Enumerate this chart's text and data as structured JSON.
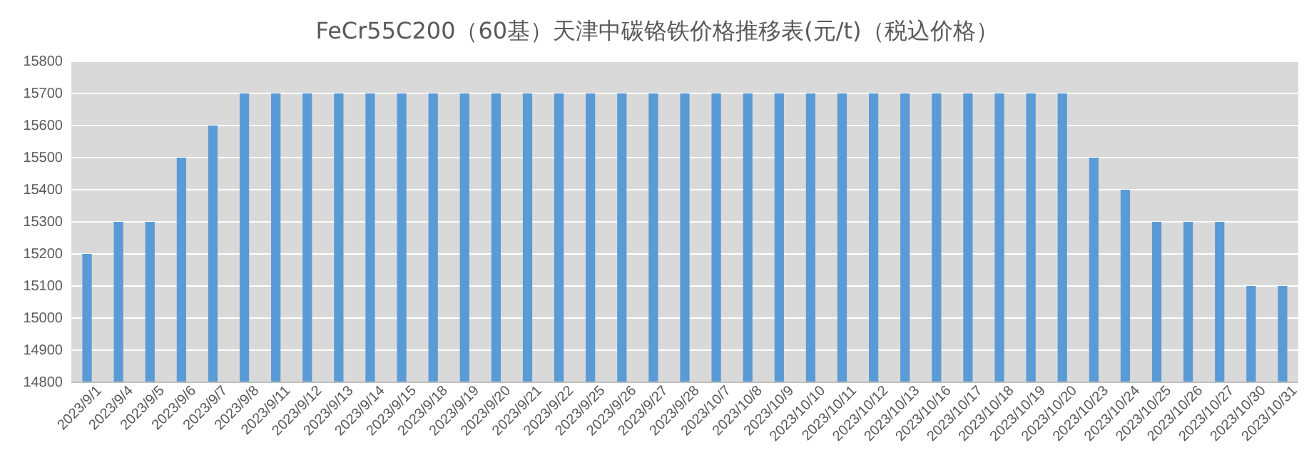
{
  "chart_data": {
    "type": "bar",
    "title": "FeCr55C200（60基）天津中碳铬铁价格推移表(元/t)（税込价格）",
    "categories": [
      "2023/9/1",
      "2023/9/4",
      "2023/9/5",
      "2023/9/6",
      "2023/9/7",
      "2023/9/8",
      "2023/9/11",
      "2023/9/12",
      "2023/9/13",
      "2023/9/14",
      "2023/9/15",
      "2023/9/18",
      "2023/9/19",
      "2023/9/20",
      "2023/9/21",
      "2023/9/22",
      "2023/9/25",
      "2023/9/26",
      "2023/9/27",
      "2023/9/28",
      "2023/10/7",
      "2023/10/8",
      "2023/10/9",
      "2023/10/10",
      "2023/10/11",
      "2023/10/12",
      "2023/10/13",
      "2023/10/16",
      "2023/10/17",
      "2023/10/18",
      "2023/10/19",
      "2023/10/20",
      "2023/10/23",
      "2023/10/24",
      "2023/10/25",
      "2023/10/26",
      "2023/10/27",
      "2023/10/30",
      "2023/10/31"
    ],
    "values": [
      15200,
      15300,
      15300,
      15500,
      15600,
      15700,
      15700,
      15700,
      15700,
      15700,
      15700,
      15700,
      15700,
      15700,
      15700,
      15700,
      15700,
      15700,
      15700,
      15700,
      15700,
      15700,
      15700,
      15700,
      15700,
      15700,
      15700,
      15700,
      15700,
      15700,
      15700,
      15700,
      15500,
      15400,
      15300,
      15300,
      15300,
      15100,
      15100
    ],
    "color": "#5b9bd5",
    "ylim": [
      14800,
      15800
    ],
    "yticks": [
      14800,
      14900,
      15000,
      15100,
      15200,
      15300,
      15400,
      15500,
      15600,
      15700,
      15800
    ],
    "grid": "y"
  }
}
